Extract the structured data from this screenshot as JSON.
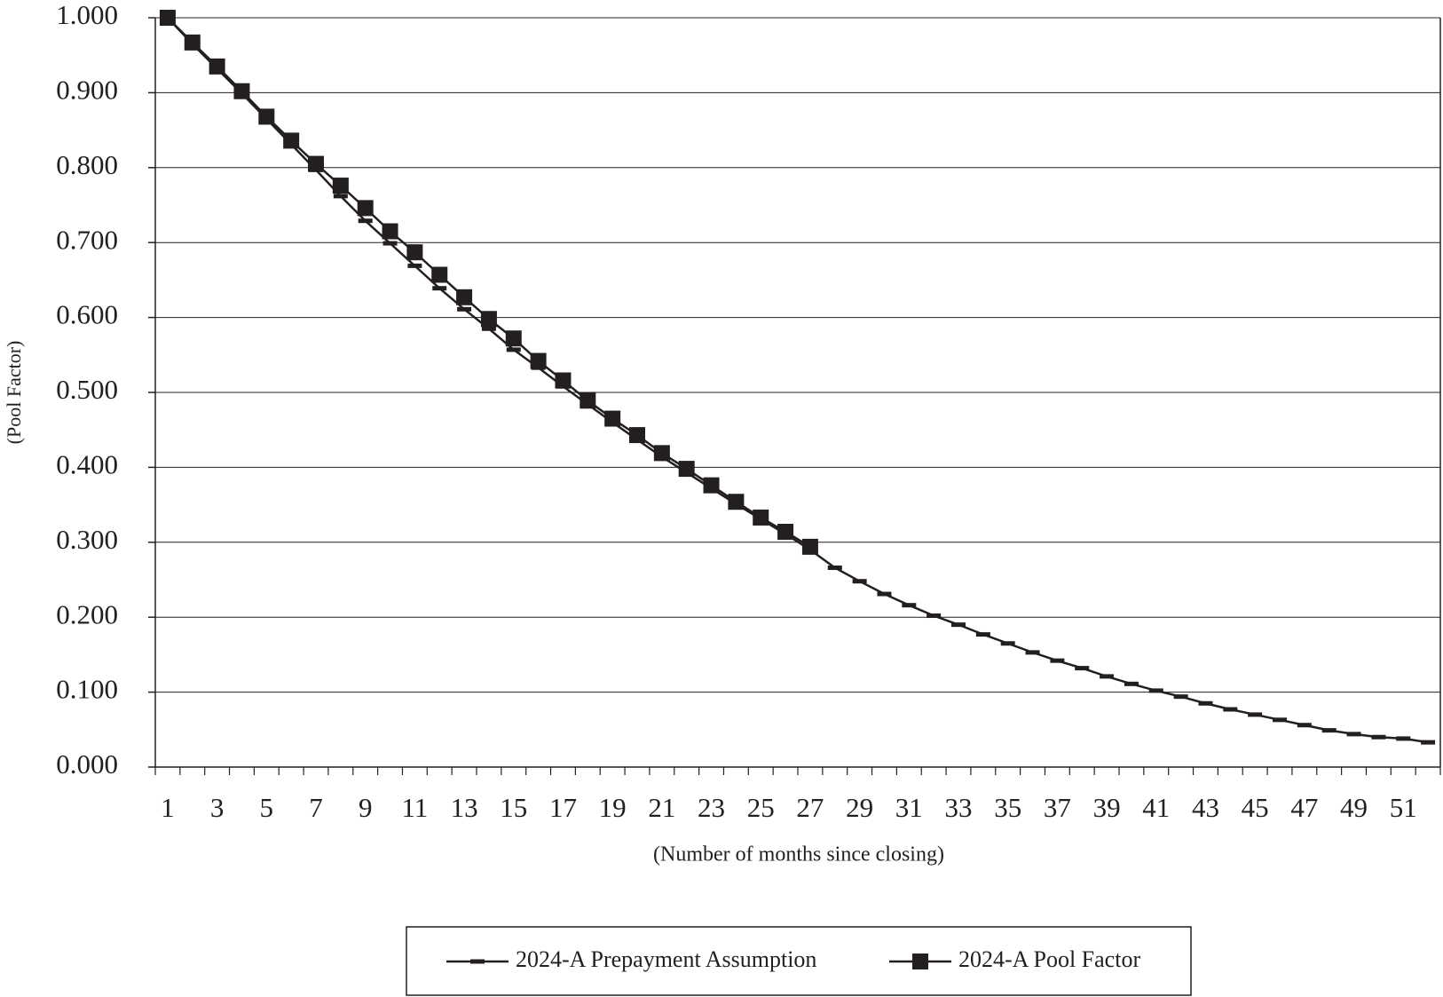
{
  "chart_data": {
    "type": "line",
    "x_label": "(Number of months since closing)",
    "y_label": "(Pool Factor)",
    "categories": [
      1,
      null,
      3,
      null,
      5,
      null,
      7,
      null,
      9,
      null,
      11,
      null,
      13,
      null,
      15,
      null,
      17,
      null,
      19,
      null,
      21,
      null,
      23,
      null,
      25,
      null,
      27,
      null,
      29,
      null,
      31,
      null,
      33,
      null,
      35,
      null,
      37,
      null,
      39,
      null,
      41,
      null,
      43,
      null,
      45,
      null,
      47,
      null,
      49,
      null,
      51,
      null
    ],
    "series": [
      {
        "name": "2024-A Prepayment Assumption",
        "color": "#231f20",
        "marker": "dash",
        "values": [
          1.0,
          0.965,
          0.932,
          0.899,
          0.865,
          0.831,
          0.797,
          0.762,
          0.729,
          0.699,
          0.669,
          0.639,
          0.611,
          0.585,
          0.557,
          0.533,
          0.508,
          0.484,
          0.46,
          0.437,
          0.414,
          0.393,
          0.372,
          0.351,
          0.331,
          0.311,
          0.29,
          0.266,
          0.248,
          0.231,
          0.216,
          0.202,
          0.19,
          0.177,
          0.165,
          0.153,
          0.142,
          0.132,
          0.121,
          0.111,
          0.102,
          0.094,
          0.085,
          0.077,
          0.07,
          0.063,
          0.056,
          0.049,
          0.044,
          0.04,
          0.038,
          0.033
        ]
      },
      {
        "name": "2024-A Pool Factor",
        "color": "#231f20",
        "marker": "square",
        "values": [
          1.0,
          0.967,
          0.935,
          0.902,
          0.868,
          0.836,
          0.805,
          0.776,
          0.746,
          0.715,
          0.687,
          0.657,
          0.627,
          0.598,
          0.572,
          0.542,
          0.516,
          0.489,
          0.465,
          0.443,
          0.419,
          0.398,
          0.376,
          0.354,
          0.333,
          0.314,
          0.294,
          null,
          null,
          null,
          null,
          null,
          null,
          null,
          null,
          null,
          null,
          null,
          null,
          null,
          null,
          null,
          null,
          null,
          null,
          null,
          null,
          null,
          null,
          null,
          null,
          null
        ]
      }
    ],
    "ylim": [
      0,
      1
    ],
    "yticks": [
      {
        "value": 0,
        "label": "0.000"
      },
      {
        "value": 0.1,
        "label": "0.100"
      },
      {
        "value": 0.2,
        "label": "0.200"
      },
      {
        "value": 0.3,
        "label": "0.300"
      },
      {
        "value": 0.4,
        "label": "0.400"
      },
      {
        "value": 0.5,
        "label": "0.500"
      },
      {
        "value": 0.6,
        "label": "0.600"
      },
      {
        "value": 0.7,
        "label": "0.700"
      },
      {
        "value": 0.8,
        "label": "0.800"
      },
      {
        "value": 0.9,
        "label": "0.900"
      },
      {
        "value": 1,
        "label": "1.000"
      }
    ],
    "grid": true,
    "legend": "bottom"
  }
}
